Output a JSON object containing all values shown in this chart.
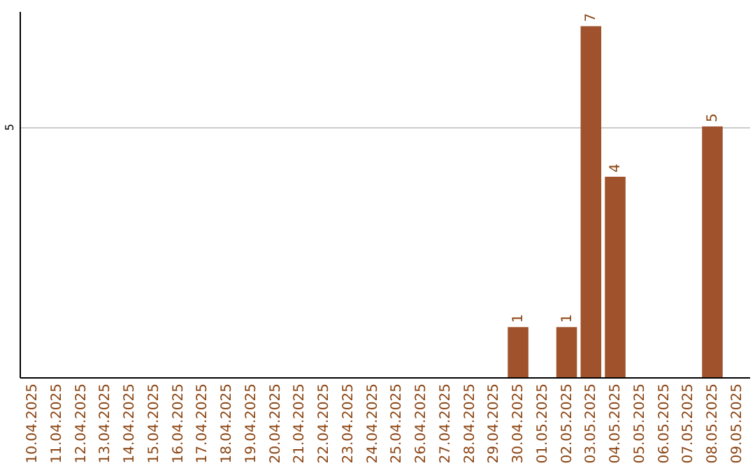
{
  "chart_data": {
    "type": "bar",
    "categories": [
      "10.04.2025",
      "11.04.2025",
      "12.04.2025",
      "13.04.2025",
      "14.04.2025",
      "15.04.2025",
      "16.04.2025",
      "17.04.2025",
      "18.04.2025",
      "19.04.2025",
      "20.04.2025",
      "21.04.2025",
      "22.04.2025",
      "23.04.2025",
      "24.04.2025",
      "25.04.2025",
      "26.04.2025",
      "27.04.2025",
      "28.04.2025",
      "29.04.2025",
      "30.04.2025",
      "01.05.2025",
      "02.05.2025",
      "03.05.2025",
      "04.05.2025",
      "05.05.2025",
      "06.05.2025",
      "07.05.2025",
      "08.05.2025",
      "09.05.2025"
    ],
    "values": [
      null,
      null,
      null,
      null,
      null,
      null,
      null,
      null,
      null,
      null,
      null,
      null,
      null,
      null,
      null,
      null,
      null,
      null,
      null,
      null,
      1,
      null,
      1,
      7,
      4,
      null,
      null,
      null,
      5,
      null
    ],
    "color": "#a0522d",
    "ylim": [
      0,
      7.3
    ],
    "yticks": [
      5
    ],
    "grid": "y",
    "data_labels": true
  }
}
